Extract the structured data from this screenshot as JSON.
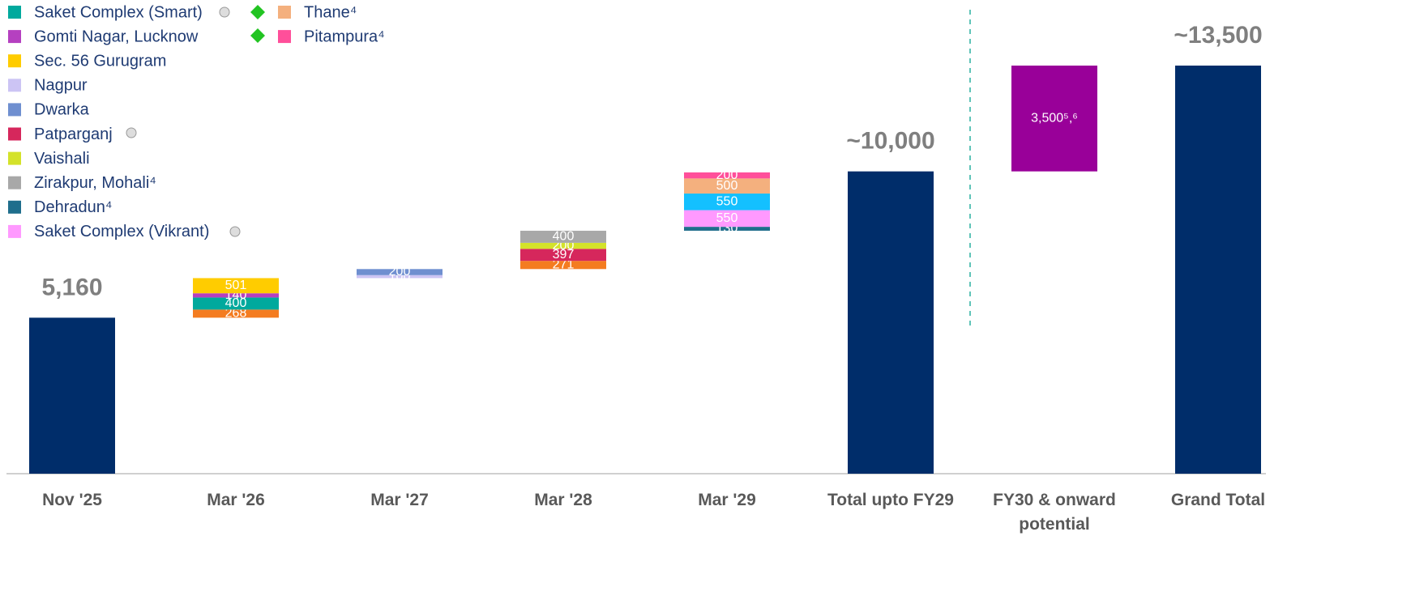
{
  "chart_data": {
    "type": "waterfall",
    "categories": [
      "Nov '25",
      "Mar '26",
      "Mar '27",
      "Mar '28",
      "Mar '29",
      "Total upto FY29",
      "FY30 & onward potential",
      "Grand Total"
    ],
    "totals": {
      "color": "#002d6a",
      "values": [
        5160,
        null,
        null,
        null,
        null,
        10000,
        null,
        13500
      ],
      "value_labels": [
        "5,160",
        null,
        null,
        null,
        null,
        "~10,000",
        null,
        "~13,500"
      ]
    },
    "series": [
      {
        "color": "#f47c20",
        "values": [
          null,
          268,
          null,
          271,
          null,
          null,
          null,
          null
        ]
      },
      {
        "name": "Saket Complex (Smart)",
        "color": "#00a99d",
        "values": [
          null,
          400,
          null,
          null,
          null,
          null,
          null,
          null
        ]
      },
      {
        "name": "Gomti Nagar, Lucknow",
        "color": "#b540c0",
        "values": [
          null,
          140,
          null,
          null,
          null,
          null,
          null,
          null
        ]
      },
      {
        "name": "Sec. 56 Gurugram",
        "color": "#ffcc00",
        "values": [
          null,
          501,
          null,
          null,
          null,
          null,
          null,
          null
        ]
      },
      {
        "name": "Nagpur",
        "color": "#ccc4f4",
        "values": [
          null,
          null,
          100,
          null,
          null,
          null,
          null,
          null
        ]
      },
      {
        "name": "Dwarka",
        "color": "#6f8fd0",
        "values": [
          null,
          null,
          200,
          null,
          null,
          null,
          null,
          null
        ]
      },
      {
        "name": "Patparganj",
        "color": "#d6275c",
        "values": [
          null,
          null,
          null,
          397,
          null,
          null,
          null,
          null
        ]
      },
      {
        "name": "Vaishali",
        "color": "#d4e22a",
        "values": [
          null,
          null,
          null,
          200,
          null,
          null,
          null,
          null
        ]
      },
      {
        "name": "Zirakpur, Mohali⁴",
        "color": "#a8a8a8",
        "values": [
          null,
          null,
          null,
          400,
          null,
          null,
          null,
          null
        ]
      },
      {
        "name": "Dehradun⁴",
        "color": "#1f6e8c",
        "values": [
          null,
          null,
          null,
          null,
          130,
          null,
          null,
          null
        ]
      },
      {
        "name": "Saket Complex (Vikrant)",
        "color": "#ff99ff",
        "values": [
          null,
          null,
          null,
          null,
          550,
          null,
          null,
          null
        ]
      },
      {
        "color": "#14c0ff",
        "values": [
          null,
          null,
          null,
          null,
          550,
          null,
          null,
          null
        ]
      },
      {
        "name": "Thane⁴",
        "color": "#f4b07e",
        "values": [
          null,
          null,
          null,
          null,
          500,
          null,
          null,
          null
        ]
      },
      {
        "name": "Pitampura⁴",
        "color": "#ff4f9a",
        "values": [
          null,
          null,
          null,
          null,
          200,
          null,
          null,
          null
        ]
      },
      {
        "color": "#990099",
        "values": [
          null,
          null,
          null,
          null,
          null,
          null,
          3500,
          null
        ],
        "value_labels": [
          null,
          null,
          null,
          null,
          null,
          null,
          "3,500⁵,⁶",
          null
        ]
      }
    ]
  }
}
